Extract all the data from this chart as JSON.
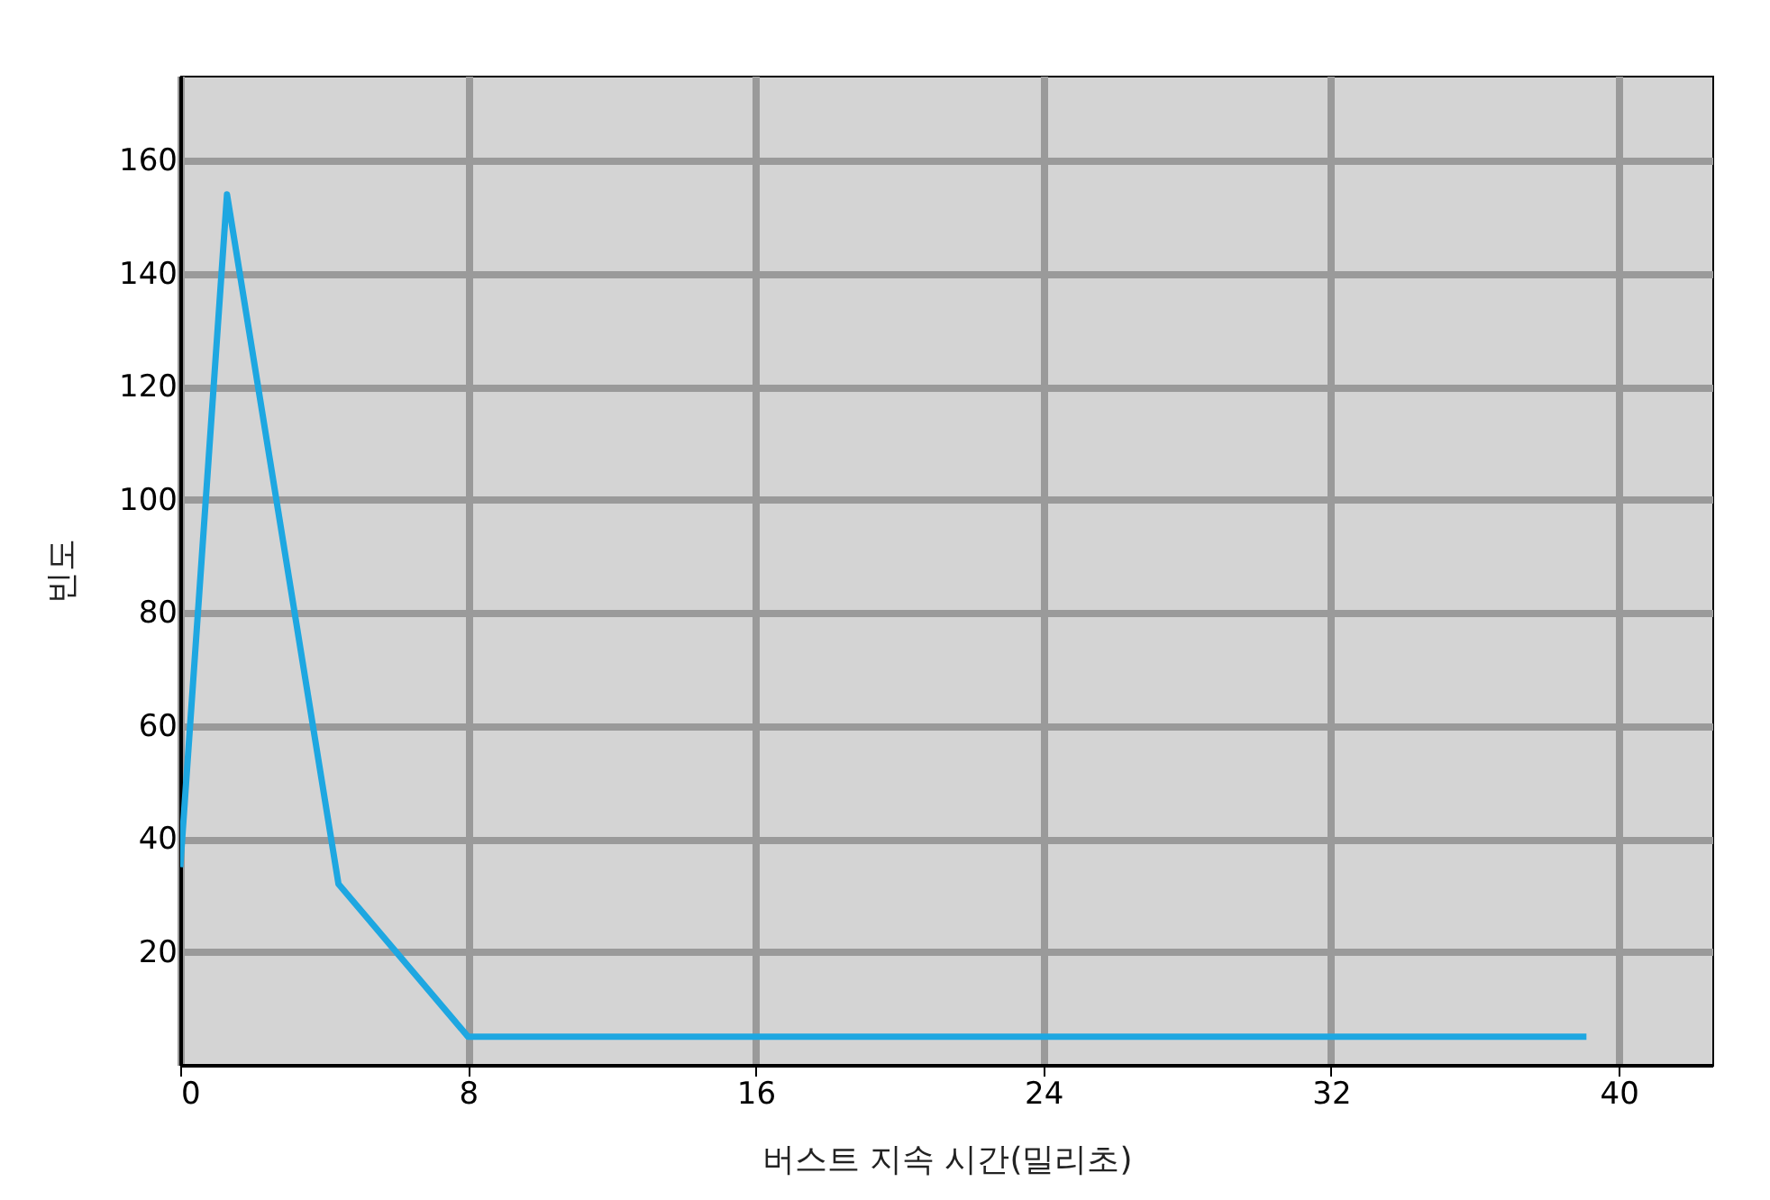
{
  "chart_data": {
    "type": "line",
    "xlabel": "버스트 지속 시간(밀리초)",
    "ylabel": "빈도",
    "x": [
      0,
      1.3,
      4.4,
      8,
      39.1
    ],
    "series": [
      {
        "color": "#1ea7e1",
        "values": [
          35,
          154,
          32,
          5,
          5
        ]
      }
    ],
    "xlim": [
      0,
      42.6
    ],
    "xticks": [
      0,
      8,
      16,
      24,
      32,
      40
    ],
    "ylim": [
      0,
      175
    ],
    "yticks": [
      20,
      40,
      60,
      80,
      100,
      120,
      140,
      160
    ],
    "grid": true
  }
}
